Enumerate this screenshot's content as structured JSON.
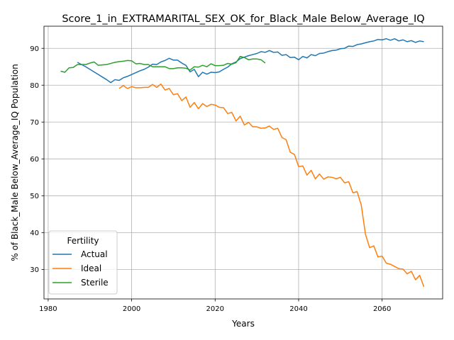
{
  "chart_data": {
    "type": "line",
    "title": "Score_1_in_EXTRAMARITAL_SEX_OK_for_Black_Male Below_Average_IQ",
    "xlabel": "Years",
    "ylabel": "% of Black_Male Below_Average_IQ Population",
    "xlim": [
      1979,
      2074.5
    ],
    "ylim": [
      22,
      96
    ],
    "xticks": [
      1980,
      2000,
      2020,
      2040,
      2060
    ],
    "yticks": [
      30,
      40,
      50,
      60,
      70,
      80,
      90
    ],
    "grid": true,
    "legend": {
      "title": "Fertility",
      "placement": "lower-left"
    },
    "series": [
      {
        "name": "Actual",
        "color": "#1f77b4",
        "points": [
          [
            1987,
            86.2
          ],
          [
            1988,
            85.6
          ],
          [
            1989,
            85.0
          ],
          [
            1990,
            84.3
          ],
          [
            1991,
            83.6
          ],
          [
            1992,
            82.9
          ],
          [
            1993,
            82.2
          ],
          [
            1994,
            81.5
          ],
          [
            1995,
            80.7
          ],
          [
            1996,
            81.5
          ],
          [
            1997,
            81.3
          ],
          [
            1998,
            82.0
          ],
          [
            1999,
            82.4
          ],
          [
            2000,
            82.9
          ],
          [
            2001,
            83.4
          ],
          [
            2002,
            83.9
          ],
          [
            2003,
            84.3
          ],
          [
            2004,
            84.9
          ],
          [
            2005,
            85.7
          ],
          [
            2006,
            85.6
          ],
          [
            2007,
            86.3
          ],
          [
            2008,
            86.7
          ],
          [
            2009,
            87.3
          ],
          [
            2010,
            86.8
          ],
          [
            2011,
            86.8
          ],
          [
            2012,
            86.0
          ],
          [
            2013,
            85.4
          ],
          [
            2014,
            83.6
          ],
          [
            2015,
            84.3
          ],
          [
            2016,
            82.3
          ],
          [
            2017,
            83.5
          ],
          [
            2018,
            83.0
          ],
          [
            2019,
            83.5
          ],
          [
            2020,
            83.4
          ],
          [
            2021,
            83.6
          ],
          [
            2022,
            84.3
          ],
          [
            2023,
            84.9
          ],
          [
            2024,
            85.8
          ],
          [
            2025,
            86.3
          ],
          [
            2026,
            87.2
          ],
          [
            2027,
            87.6
          ],
          [
            2028,
            88.0
          ],
          [
            2029,
            88.3
          ],
          [
            2030,
            88.6
          ],
          [
            2031,
            89.1
          ],
          [
            2032,
            88.9
          ],
          [
            2033,
            89.4
          ],
          [
            2034,
            88.9
          ],
          [
            2035,
            89.0
          ],
          [
            2036,
            88.1
          ],
          [
            2037,
            88.3
          ],
          [
            2038,
            87.5
          ],
          [
            2039,
            87.6
          ],
          [
            2040,
            86.9
          ],
          [
            2041,
            87.8
          ],
          [
            2042,
            87.4
          ],
          [
            2043,
            88.3
          ],
          [
            2044,
            88.0
          ],
          [
            2045,
            88.6
          ],
          [
            2046,
            88.7
          ],
          [
            2047,
            89.1
          ],
          [
            2048,
            89.4
          ],
          [
            2049,
            89.5
          ],
          [
            2050,
            89.9
          ],
          [
            2051,
            90.0
          ],
          [
            2052,
            90.6
          ],
          [
            2053,
            90.5
          ],
          [
            2054,
            91.0
          ],
          [
            2055,
            91.2
          ],
          [
            2056,
            91.5
          ],
          [
            2057,
            91.8
          ],
          [
            2058,
            92.0
          ],
          [
            2059,
            92.4
          ],
          [
            2060,
            92.3
          ],
          [
            2061,
            92.6
          ],
          [
            2062,
            92.2
          ],
          [
            2063,
            92.6
          ],
          [
            2064,
            92.0
          ],
          [
            2065,
            92.3
          ],
          [
            2066,
            91.8
          ],
          [
            2067,
            92.1
          ],
          [
            2068,
            91.6
          ],
          [
            2069,
            92.0
          ],
          [
            2070,
            91.8
          ]
        ]
      },
      {
        "name": "Ideal",
        "color": "#ff7f0e",
        "points": [
          [
            1997,
            79.1
          ],
          [
            1998,
            79.9
          ],
          [
            1999,
            79.1
          ],
          [
            2000,
            79.6
          ],
          [
            2001,
            79.3
          ],
          [
            2002,
            79.3
          ],
          [
            2003,
            79.4
          ],
          [
            2004,
            79.4
          ],
          [
            2005,
            80.2
          ],
          [
            2006,
            79.4
          ],
          [
            2007,
            80.3
          ],
          [
            2008,
            78.7
          ],
          [
            2009,
            79.1
          ],
          [
            2010,
            77.4
          ],
          [
            2011,
            77.7
          ],
          [
            2012,
            75.8
          ],
          [
            2013,
            76.8
          ],
          [
            2014,
            74.0
          ],
          [
            2015,
            75.3
          ],
          [
            2016,
            73.6
          ],
          [
            2017,
            75.0
          ],
          [
            2018,
            74.2
          ],
          [
            2019,
            74.8
          ],
          [
            2020,
            74.6
          ],
          [
            2021,
            74.0
          ],
          [
            2022,
            73.9
          ],
          [
            2023,
            72.3
          ],
          [
            2024,
            72.6
          ],
          [
            2025,
            70.3
          ],
          [
            2026,
            71.6
          ],
          [
            2027,
            69.2
          ],
          [
            2028,
            69.9
          ],
          [
            2029,
            68.7
          ],
          [
            2030,
            68.7
          ],
          [
            2031,
            68.3
          ],
          [
            2032,
            68.4
          ],
          [
            2033,
            68.9
          ],
          [
            2034,
            68.0
          ],
          [
            2035,
            68.3
          ],
          [
            2036,
            65.8
          ],
          [
            2037,
            65.2
          ],
          [
            2038,
            61.8
          ],
          [
            2039,
            61.2
          ],
          [
            2040,
            57.9
          ],
          [
            2041,
            58.1
          ],
          [
            2042,
            55.6
          ],
          [
            2043,
            56.9
          ],
          [
            2044,
            54.6
          ],
          [
            2045,
            55.9
          ],
          [
            2046,
            54.5
          ],
          [
            2047,
            55.1
          ],
          [
            2048,
            55.0
          ],
          [
            2049,
            54.6
          ],
          [
            2050,
            55.0
          ],
          [
            2051,
            53.5
          ],
          [
            2052,
            53.8
          ],
          [
            2053,
            50.8
          ],
          [
            2054,
            51.1
          ],
          [
            2055,
            47.5
          ],
          [
            2056,
            39.6
          ],
          [
            2057,
            35.9
          ],
          [
            2058,
            36.4
          ],
          [
            2059,
            33.4
          ],
          [
            2060,
            33.6
          ],
          [
            2061,
            31.7
          ],
          [
            2062,
            31.4
          ],
          [
            2063,
            30.8
          ],
          [
            2064,
            30.2
          ],
          [
            2065,
            30.1
          ],
          [
            2066,
            28.8
          ],
          [
            2067,
            29.5
          ],
          [
            2068,
            27.2
          ],
          [
            2069,
            28.4
          ],
          [
            2070,
            25.3
          ]
        ]
      },
      {
        "name": "Sterile",
        "color": "#2ca02c",
        "points": [
          [
            1983,
            83.8
          ],
          [
            1984,
            83.5
          ],
          [
            1985,
            84.7
          ],
          [
            1986,
            84.8
          ],
          [
            1987,
            85.6
          ],
          [
            1988,
            85.6
          ],
          [
            1989,
            85.6
          ],
          [
            1990,
            86.0
          ],
          [
            1991,
            86.3
          ],
          [
            1992,
            85.4
          ],
          [
            1993,
            85.5
          ],
          [
            1994,
            85.6
          ],
          [
            1995,
            85.9
          ],
          [
            1996,
            86.2
          ],
          [
            1997,
            86.4
          ],
          [
            1998,
            86.5
          ],
          [
            1999,
            86.7
          ],
          [
            2000,
            86.6
          ],
          [
            2001,
            85.8
          ],
          [
            2002,
            85.9
          ],
          [
            2003,
            85.6
          ],
          [
            2004,
            85.6
          ],
          [
            2005,
            85.0
          ],
          [
            2006,
            85.0
          ],
          [
            2007,
            85.0
          ],
          [
            2008,
            85.0
          ],
          [
            2009,
            84.5
          ],
          [
            2010,
            84.5
          ],
          [
            2011,
            84.7
          ],
          [
            2012,
            84.7
          ],
          [
            2013,
            84.6
          ],
          [
            2014,
            84.1
          ],
          [
            2015,
            85.0
          ],
          [
            2016,
            84.9
          ],
          [
            2017,
            85.4
          ],
          [
            2018,
            85.0
          ],
          [
            2019,
            85.8
          ],
          [
            2020,
            85.3
          ],
          [
            2021,
            85.3
          ],
          [
            2022,
            85.4
          ],
          [
            2023,
            85.9
          ],
          [
            2024,
            85.7
          ],
          [
            2025,
            86.1
          ],
          [
            2026,
            87.8
          ],
          [
            2027,
            87.5
          ],
          [
            2028,
            86.9
          ],
          [
            2029,
            87.1
          ],
          [
            2030,
            87.1
          ],
          [
            2031,
            86.9
          ],
          [
            2032,
            86.0
          ]
        ]
      }
    ]
  }
}
